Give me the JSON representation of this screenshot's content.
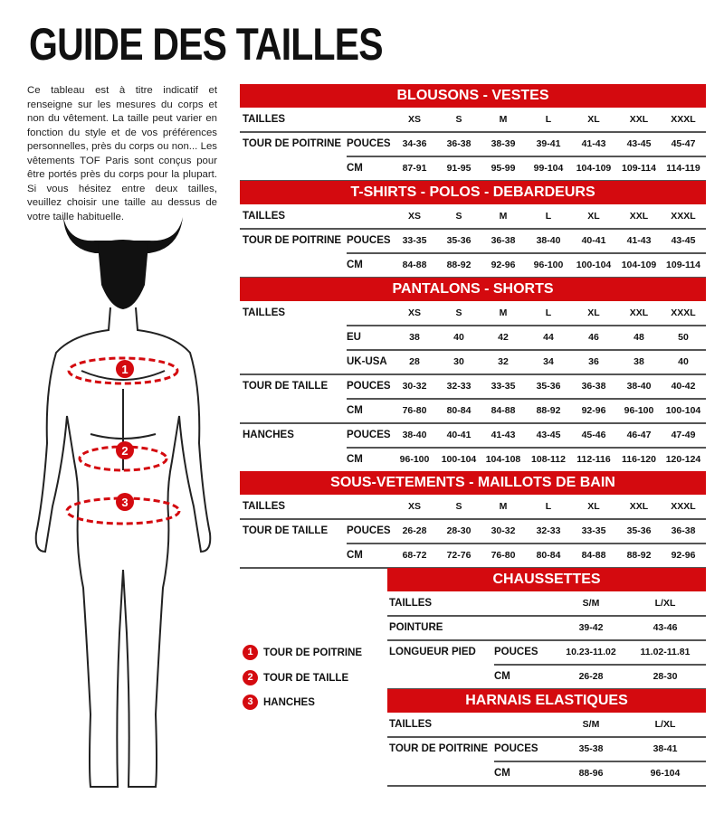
{
  "title": "GUIDE DES TAILLES",
  "intro": "Ce tableau est à titre indicatif et renseigne sur les mesures du corps et non du vêtement. La taille peut varier en fonction du style et de vos préférences personnelles, près du corps ou non... Les vêtements TOF Paris sont conçus pour être portés près du corps pour la plupart. Si vous hésitez entre deux tailles, veuillez choisir une taille au dessus de votre taille habituelle.",
  "accent": "#d40a0f",
  "legend": [
    {
      "num": "1",
      "label": "TOUR DE POITRINE"
    },
    {
      "num": "2",
      "label": "TOUR DE TAILLE"
    },
    {
      "num": "3",
      "label": "HANCHES"
    }
  ],
  "tables": [
    {
      "title": "BLOUSONS - VESTES",
      "rows": [
        {
          "label": "TAILLES",
          "sub": "",
          "values": [
            "XS",
            "S",
            "M",
            "L",
            "XL",
            "XXL",
            "XXXL"
          ]
        },
        {
          "label": "TOUR DE POITRINE",
          "sub": "POUCES",
          "values": [
            "34-36",
            "36-38",
            "38-39",
            "39-41",
            "41-43",
            "43-45",
            "45-47"
          ]
        },
        {
          "label": "",
          "sub": "CM",
          "values": [
            "87-91",
            "91-95",
            "95-99",
            "99-104",
            "104-109",
            "109-114",
            "114-119"
          ]
        }
      ]
    },
    {
      "title": "T-SHIRTS - POLOS - DEBARDEURS",
      "rows": [
        {
          "label": "TAILLES",
          "sub": "",
          "values": [
            "XS",
            "S",
            "M",
            "L",
            "XL",
            "XXL",
            "XXXL"
          ]
        },
        {
          "label": "TOUR DE POITRINE",
          "sub": "POUCES",
          "values": [
            "33-35",
            "35-36",
            "36-38",
            "38-40",
            "40-41",
            "41-43",
            "43-45"
          ]
        },
        {
          "label": "",
          "sub": "CM",
          "values": [
            "84-88",
            "88-92",
            "92-96",
            "96-100",
            "100-104",
            "104-109",
            "109-114"
          ]
        }
      ]
    },
    {
      "title": "PANTALONS - SHORTS",
      "rows": [
        {
          "label": "TAILLES",
          "sub": "",
          "values": [
            "XS",
            "S",
            "M",
            "L",
            "XL",
            "XXL",
            "XXXL"
          ]
        },
        {
          "label": "",
          "sub": "EU",
          "values": [
            "38",
            "40",
            "42",
            "44",
            "46",
            "48",
            "50"
          ]
        },
        {
          "label": "",
          "sub": "UK-USA",
          "values": [
            "28",
            "30",
            "32",
            "34",
            "36",
            "38",
            "40"
          ]
        },
        {
          "label": "TOUR DE TAILLE",
          "sub": "POUCES",
          "values": [
            "30-32",
            "32-33",
            "33-35",
            "35-36",
            "36-38",
            "38-40",
            "40-42"
          ]
        },
        {
          "label": "",
          "sub": "CM",
          "values": [
            "76-80",
            "80-84",
            "84-88",
            "88-92",
            "92-96",
            "96-100",
            "100-104"
          ]
        },
        {
          "label": "HANCHES",
          "sub": "POUCES",
          "values": [
            "38-40",
            "40-41",
            "41-43",
            "43-45",
            "45-46",
            "46-47",
            "47-49"
          ]
        },
        {
          "label": "",
          "sub": "CM",
          "values": [
            "96-100",
            "100-104",
            "104-108",
            "108-112",
            "112-116",
            "116-120",
            "120-124"
          ]
        }
      ]
    },
    {
      "title": "SOUS-VETEMENTS - MAILLOTS DE BAIN",
      "rows": [
        {
          "label": "TAILLES",
          "sub": "",
          "values": [
            "XS",
            "S",
            "M",
            "L",
            "XL",
            "XXL",
            "XXXL"
          ]
        },
        {
          "label": "TOUR DE TAILLE",
          "sub": "POUCES",
          "values": [
            "26-28",
            "28-30",
            "30-32",
            "32-33",
            "33-35",
            "35-36",
            "36-38"
          ]
        },
        {
          "label": "",
          "sub": "CM",
          "values": [
            "68-72",
            "72-76",
            "76-80",
            "80-84",
            "84-88",
            "88-92",
            "92-96"
          ]
        }
      ]
    },
    {
      "title": "CHAUSSETTES",
      "rows": [
        {
          "label": "TAILLES",
          "sub": "",
          "values": [
            "S/M",
            "L/XL"
          ]
        },
        {
          "label": "POINTURE",
          "sub": "",
          "values": [
            "39-42",
            "43-46"
          ]
        },
        {
          "label": "LONGUEUR PIED",
          "sub": "POUCES",
          "values": [
            "10.23-11.02",
            "11.02-11.81"
          ]
        },
        {
          "label": "",
          "sub": "CM",
          "values": [
            "26-28",
            "28-30"
          ]
        }
      ]
    },
    {
      "title": "HARNAIS ELASTIQUES",
      "rows": [
        {
          "label": "TAILLES",
          "sub": "",
          "values": [
            "S/M",
            "L/XL"
          ]
        },
        {
          "label": "TOUR DE POITRINE",
          "sub": "POUCES",
          "values": [
            "35-38",
            "38-41"
          ]
        },
        {
          "label": "",
          "sub": "CM",
          "values": [
            "88-96",
            "96-104"
          ]
        }
      ]
    }
  ]
}
